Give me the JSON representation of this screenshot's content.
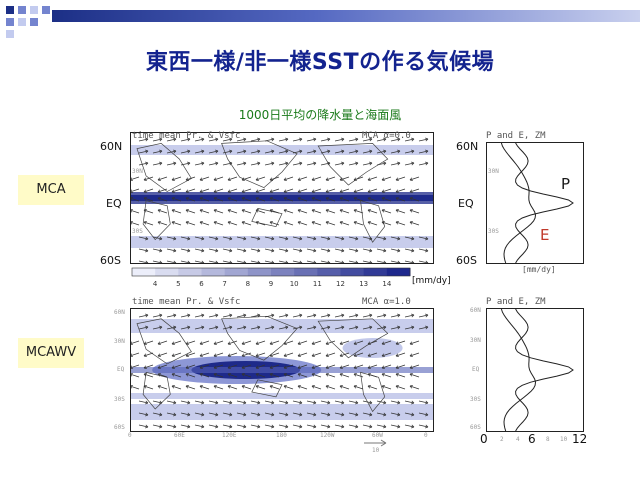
{
  "slide": {
    "title": "東西一様/非一様SSTの作る気候場",
    "subtitle": "1000日平均の降水量と海面風"
  },
  "map_panels": [
    {
      "header_left": "time mean Pr. & Vsfc",
      "header_right": "MCA α=0.0",
      "row_label": "MCA",
      "lat_labels": [
        "60N",
        "EQ",
        "60S"
      ],
      "y_ticks": [
        "30N",
        "EQ",
        "30S"
      ]
    },
    {
      "header_left": "time mean Pr. & Vsfc",
      "header_right": "MCA α=1.0",
      "row_label": "MCAWV",
      "lat_labels": [],
      "y_ticks": [
        "60N",
        "30N",
        "EQ",
        "30S",
        "60S"
      ],
      "x_ticks": [
        "0",
        "60E",
        "120E",
        "180",
        "120W",
        "60W",
        "0"
      ],
      "vector_ref": "10"
    }
  ],
  "colorbar": {
    "ticks": [
      "4",
      "5",
      "6",
      "7",
      "8",
      "9",
      "10",
      "11",
      "12",
      "13",
      "14"
    ],
    "unit": "[mm/dy]"
  },
  "zonal_panels": [
    {
      "header": "P and E, ZM",
      "lat_labels": [
        "60N",
        "EQ",
        "60S"
      ],
      "y_ticks": [
        "30N",
        "30S"
      ],
      "unit": "[mm/dy]",
      "p_label": "P",
      "e_label": "E"
    },
    {
      "header": "P and E, ZM",
      "y_ticks": [
        "60N",
        "30N",
        "EQ",
        "30S",
        "60S"
      ],
      "x_axis": [
        "0",
        "6",
        "12"
      ],
      "x_minor": [
        "2",
        "4",
        "8",
        "10"
      ]
    }
  ],
  "colors": {
    "title": "#13238f",
    "subtitle": "#1a7a1a",
    "label_bg": "#fffbc8",
    "precip_dark": "#1e2a8a",
    "precip_light": "#c2c8ea",
    "p_label": "#1a1a1a",
    "e_label": "#c0392b"
  },
  "icons": [
    "decorative-squares-icon",
    "title-bar-icon"
  ]
}
